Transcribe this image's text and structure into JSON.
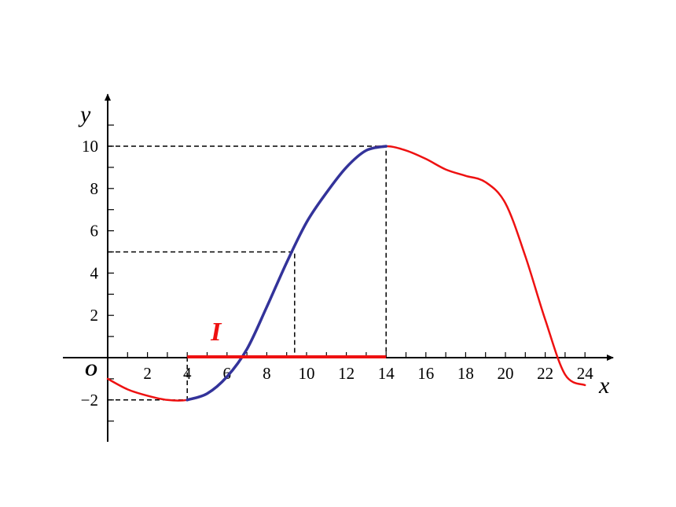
{
  "chart_data": {
    "type": "line",
    "title": "",
    "xlabel": "x",
    "ylabel": "y",
    "origin_label": "O",
    "xlim": [
      0,
      25.5
    ],
    "ylim": [
      -4,
      12.4
    ],
    "x_ticks": [
      {
        "value": 2,
        "label": "2"
      },
      {
        "value": 4,
        "label": "4"
      },
      {
        "value": 6,
        "label": "6"
      },
      {
        "value": 8,
        "label": "8"
      },
      {
        "value": 10,
        "label": "10"
      },
      {
        "value": 12,
        "label": "12"
      },
      {
        "value": 14,
        "label": "14"
      },
      {
        "value": 16,
        "label": "16"
      },
      {
        "value": 18,
        "label": "18"
      },
      {
        "value": 20,
        "label": "20"
      },
      {
        "value": 22,
        "label": "22"
      },
      {
        "value": 24,
        "label": "24"
      }
    ],
    "y_ticks": [
      {
        "value": -2,
        "label": "−2"
      },
      {
        "value": 2,
        "label": "2"
      },
      {
        "value": 4,
        "label": "4"
      },
      {
        "value": 6,
        "label": "6"
      },
      {
        "value": 8,
        "label": "8"
      },
      {
        "value": 10,
        "label": "10"
      }
    ],
    "series": [
      {
        "color": "#ee1111",
        "x": [
          0,
          1,
          2,
          3,
          4,
          5,
          6,
          7,
          8,
          9,
          10,
          11,
          12,
          13,
          14,
          15,
          16,
          17,
          18,
          19,
          20,
          21,
          22,
          23,
          24
        ],
        "y": [
          -1.0,
          -1.5,
          -1.8,
          -2.0,
          -2.0,
          -1.7,
          -0.9,
          0.4,
          2.4,
          4.5,
          6.4,
          7.8,
          9.0,
          9.8,
          10.0,
          9.8,
          9.4,
          8.9,
          8.6,
          8.3,
          7.3,
          4.8,
          1.8,
          -0.8,
          -1.3
        ]
      },
      {
        "color": "#33339a",
        "x": [
          4,
          5,
          6,
          7,
          8,
          9,
          10,
          11,
          12,
          13,
          14
        ],
        "y": [
          -2.0,
          -1.7,
          -0.9,
          0.4,
          2.4,
          4.5,
          6.4,
          7.8,
          9.0,
          9.8,
          10.0
        ]
      }
    ],
    "interval": {
      "from": 4,
      "to": 14,
      "label": "I",
      "color": "#ee1111"
    },
    "guides": [
      {
        "x": 4,
        "y": -2
      },
      {
        "x": 9.4,
        "y": 5
      },
      {
        "x": 14,
        "y": 10
      }
    ],
    "grid": false,
    "legend": "none"
  }
}
